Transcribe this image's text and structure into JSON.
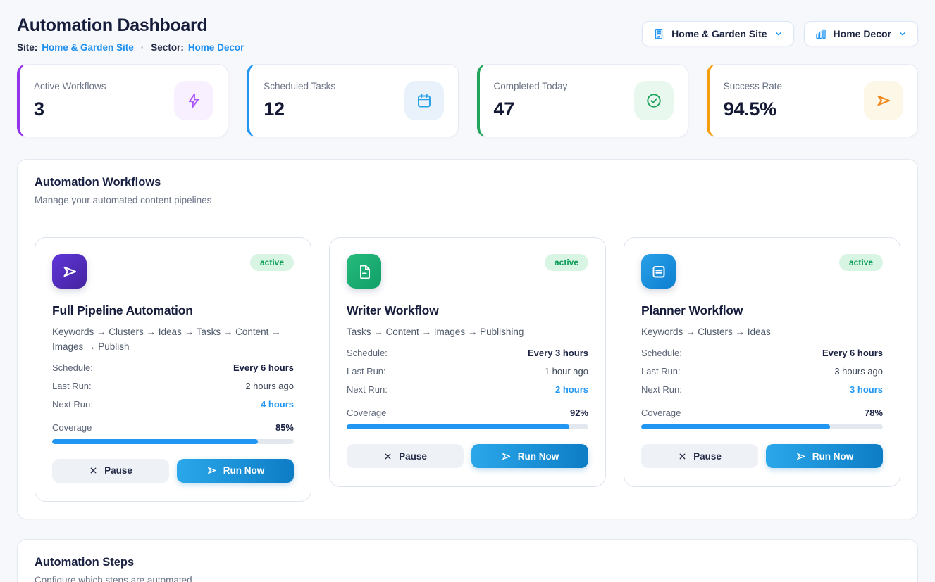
{
  "header": {
    "title": "Automation Dashboard",
    "site_label": "Site:",
    "site_value": "Home & Garden Site",
    "separator": "·",
    "sector_label": "Sector:",
    "sector_value": "Home Decor",
    "site_dropdown": {
      "label": "Home & Garden Site",
      "icon": "building-icon"
    },
    "sector_dropdown": {
      "label": "Home Decor",
      "icon": "bar-chart-icon"
    }
  },
  "stats": [
    {
      "label": "Active Workflows",
      "value": "3",
      "icon": "lightning-icon",
      "accent_color": "#9333ea",
      "icon_color": "#a955f7",
      "icon_bg": "#f8f0fe"
    },
    {
      "label": "Scheduled Tasks",
      "value": "12",
      "icon": "calendar-icon",
      "accent_color": "#2196f3",
      "icon_color": "#2aa2e9",
      "icon_bg": "#e9f2fb"
    },
    {
      "label": "Completed Today",
      "value": "47",
      "icon": "check-circle-icon",
      "accent_color": "#21a55b",
      "icon_color": "#21a45d",
      "icon_bg": "#e9f8ef"
    },
    {
      "label": "Success Rate",
      "value": "94.5%",
      "icon": "send-icon",
      "accent_color": "#f59e0b",
      "icon_color": "#f0891d",
      "icon_bg": "#fcf7e6"
    }
  ],
  "workflows_section": {
    "title": "Automation Workflows",
    "subtitle": "Manage your automated content pipelines",
    "cards": [
      {
        "name": "Full Pipeline Automation",
        "status": "active",
        "pipeline": "Keywords → Clusters → Ideas → Tasks → Content → Images → Publish",
        "icon": "send-icon",
        "icon_colors": [
          "#5f35d8",
          "#45249f"
        ],
        "schedule_label": "Schedule:",
        "schedule": "Every 6 hours",
        "last_run_label": "Last Run:",
        "last_run": "2 hours ago",
        "next_run_label": "Next Run:",
        "next_run": "4 hours",
        "coverage_label": "Coverage",
        "coverage": "85%",
        "coverage_pct": 85,
        "pause_label": "Pause",
        "run_label": "Run Now"
      },
      {
        "name": "Writer Workflow",
        "status": "active",
        "pipeline": "Tasks → Content → Images → Publishing",
        "icon": "document-icon",
        "icon_colors": [
          "#27bb7c",
          "#0f9f68"
        ],
        "schedule_label": "Schedule:",
        "schedule": "Every 3 hours",
        "last_run_label": "Last Run:",
        "last_run": "1 hour ago",
        "next_run_label": "Next Run:",
        "next_run": "2 hours",
        "coverage_label": "Coverage",
        "coverage": "92%",
        "coverage_pct": 92,
        "pause_label": "Pause",
        "run_label": "Run Now"
      },
      {
        "name": "Planner Workflow",
        "status": "active",
        "pipeline": "Keywords → Clusters → Ideas",
        "icon": "list-icon",
        "icon_colors": [
          "#2aa0e8",
          "#0c7fd0"
        ],
        "schedule_label": "Schedule:",
        "schedule": "Every 6 hours",
        "last_run_label": "Last Run:",
        "last_run": "3 hours ago",
        "next_run_label": "Next Run:",
        "next_run": "3 hours",
        "coverage_label": "Coverage",
        "coverage": "78%",
        "coverage_pct": 78,
        "pause_label": "Pause",
        "run_label": "Run Now"
      }
    ]
  },
  "steps_section": {
    "title": "Automation Steps",
    "subtitle": "Configure which steps are automated"
  },
  "theme": {
    "progress_color": "#2196f3",
    "badge_bg": "#d8f5e4",
    "badge_text": "#0c9d58",
    "run_button_gradient": [
      "#2ba7ea",
      "#0d7dc5"
    ],
    "link_color": "#1f8fee",
    "page_bg": "#f7f8fb"
  }
}
